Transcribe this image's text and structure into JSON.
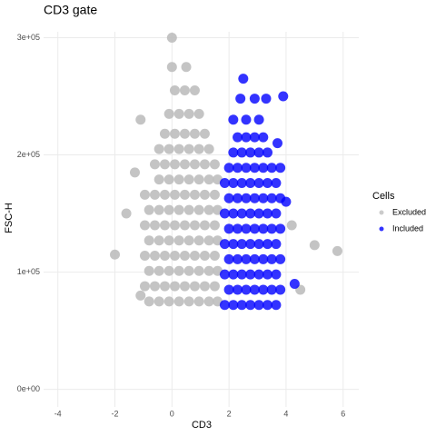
{
  "chart_data": {
    "type": "scatter",
    "title": "CD3 gate",
    "x_label": "CD3",
    "y_label": "FSC-H",
    "legend_title": "Cells",
    "legend_position": "right",
    "grid": true,
    "xlim": [
      -4.5,
      6.55
    ],
    "ylim": [
      -15000,
      305000
    ],
    "xticks": [
      -4,
      -2,
      0,
      2,
      4,
      6
    ],
    "yticks": [
      {
        "value": 0,
        "label": "0e+00"
      },
      {
        "value": 100000,
        "label": "1e+05"
      },
      {
        "value": 200000,
        "label": "2e+05"
      },
      {
        "value": 300000,
        "label": "3e+05"
      }
    ],
    "series": [
      {
        "name": "Excluded",
        "color": "#bebebe",
        "x": [
          -0.8,
          -0.45,
          -0.1,
          0.25,
          0.6,
          0.95,
          1.3,
          1.6,
          -0.95,
          -0.6,
          -0.25,
          0.1,
          0.45,
          0.8,
          1.15,
          1.5,
          -0.8,
          -0.45,
          -0.1,
          0.25,
          0.6,
          0.95,
          1.3,
          1.6,
          -0.95,
          -0.6,
          -0.25,
          0.1,
          0.45,
          0.8,
          1.15,
          1.5,
          -0.8,
          -0.45,
          -0.1,
          0.25,
          0.6,
          0.95,
          1.3,
          1.6,
          -0.95,
          -0.6,
          -0.25,
          0.1,
          0.45,
          0.8,
          1.15,
          1.5,
          -0.8,
          -0.45,
          -0.1,
          0.25,
          0.6,
          0.95,
          1.3,
          1.6,
          -0.95,
          -0.6,
          -0.25,
          0.1,
          0.45,
          0.8,
          1.15,
          1.5,
          -0.45,
          -0.1,
          0.25,
          0.6,
          0.95,
          1.3,
          1.6,
          -0.6,
          -0.25,
          0.1,
          0.45,
          0.8,
          1.15,
          1.5,
          -0.45,
          -0.1,
          0.25,
          0.6,
          0.95,
          1.3,
          -0.25,
          0.1,
          0.45,
          0.8,
          1.15,
          -0.1,
          0.25,
          0.6,
          0.95,
          0.1,
          0.45,
          0.8,
          0.0,
          0.5,
          0.0,
          -2.0,
          -1.6,
          -1.3,
          -1.1,
          -1.1,
          4.2,
          4.5,
          5.0,
          5.8
        ],
        "values": [
          75000,
          75000,
          75000,
          75000,
          75000,
          75000,
          75000,
          75000,
          88000,
          88000,
          88000,
          88000,
          88000,
          88000,
          88000,
          88000,
          101000,
          101000,
          101000,
          101000,
          101000,
          101000,
          101000,
          101000,
          114000,
          114000,
          114000,
          114000,
          114000,
          114000,
          114000,
          114000,
          127000,
          127000,
          127000,
          127000,
          127000,
          127000,
          127000,
          127000,
          140000,
          140000,
          140000,
          140000,
          140000,
          140000,
          140000,
          140000,
          153000,
          153000,
          153000,
          153000,
          153000,
          153000,
          153000,
          153000,
          166000,
          166000,
          166000,
          166000,
          166000,
          166000,
          166000,
          166000,
          179000,
          179000,
          179000,
          179000,
          179000,
          179000,
          179000,
          192000,
          192000,
          192000,
          192000,
          192000,
          192000,
          192000,
          205000,
          205000,
          205000,
          205000,
          205000,
          205000,
          218000,
          218000,
          218000,
          218000,
          218000,
          235000,
          235000,
          235000,
          235000,
          255000,
          255000,
          255000,
          275000,
          275000,
          300000,
          115000,
          150000,
          185000,
          230000,
          80000,
          140000,
          85000,
          123000,
          118000
        ]
      },
      {
        "name": "Included",
        "color": "#0000ff",
        "x": [
          1.85,
          2.15,
          2.45,
          2.75,
          3.05,
          3.35,
          3.65,
          2.0,
          2.3,
          2.6,
          2.9,
          3.2,
          3.5,
          3.8,
          1.85,
          2.15,
          2.45,
          2.75,
          3.05,
          3.35,
          3.65,
          2.0,
          2.3,
          2.6,
          2.9,
          3.2,
          3.5,
          3.8,
          1.85,
          2.15,
          2.45,
          2.75,
          3.05,
          3.35,
          3.65,
          2.0,
          2.3,
          2.6,
          2.9,
          3.2,
          3.5,
          3.8,
          1.85,
          2.15,
          2.45,
          2.75,
          3.05,
          3.35,
          3.65,
          2.0,
          2.3,
          2.6,
          2.9,
          3.2,
          3.5,
          3.8,
          1.85,
          2.15,
          2.45,
          2.75,
          3.05,
          3.35,
          3.65,
          2.0,
          2.3,
          2.6,
          2.9,
          3.2,
          3.5,
          3.8,
          2.15,
          2.45,
          2.75,
          3.05,
          3.35,
          2.3,
          2.6,
          2.9,
          3.2,
          2.15,
          2.6,
          3.05,
          2.4,
          2.9,
          3.3,
          2.5,
          3.9,
          4.0,
          4.3,
          3.7
        ],
        "values": [
          72000,
          72000,
          72000,
          72000,
          72000,
          72000,
          72000,
          85000,
          85000,
          85000,
          85000,
          85000,
          85000,
          85000,
          98000,
          98000,
          98000,
          98000,
          98000,
          98000,
          98000,
          111000,
          111000,
          111000,
          111000,
          111000,
          111000,
          111000,
          124000,
          124000,
          124000,
          124000,
          124000,
          124000,
          124000,
          137000,
          137000,
          137000,
          137000,
          137000,
          137000,
          137000,
          150000,
          150000,
          150000,
          150000,
          150000,
          150000,
          150000,
          163000,
          163000,
          163000,
          163000,
          163000,
          163000,
          163000,
          176000,
          176000,
          176000,
          176000,
          176000,
          176000,
          176000,
          189000,
          189000,
          189000,
          189000,
          189000,
          189000,
          189000,
          202000,
          202000,
          202000,
          202000,
          202000,
          215000,
          215000,
          215000,
          215000,
          230000,
          230000,
          230000,
          248000,
          248000,
          248000,
          265000,
          250000,
          160000,
          90000,
          210000
        ]
      }
    ]
  }
}
